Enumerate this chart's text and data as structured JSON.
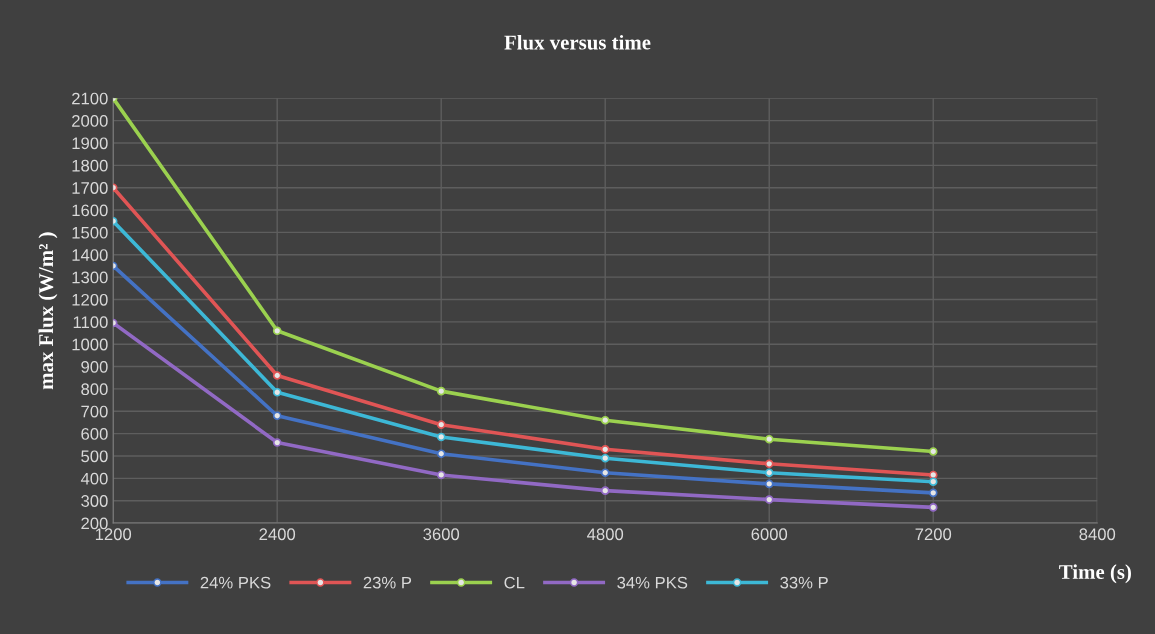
{
  "chart_data": {
    "type": "line",
    "title": "Flux versus time",
    "xlabel": "Time (s)",
    "ylabel": "max Flux (W/m² )",
    "x": [
      1200,
      2400,
      3600,
      4800,
      6000,
      7200
    ],
    "series": [
      {
        "name": "24% PKS",
        "color": "#4472c4",
        "values": [
          1350,
          680,
          510,
          425,
          375,
          335
        ]
      },
      {
        "name": "23% P",
        "color": "#e05555",
        "values": [
          1700,
          860,
          640,
          530,
          465,
          415
        ]
      },
      {
        "name": "CL",
        "color": "#9bd14f",
        "values": [
          2100,
          1060,
          790,
          660,
          575,
          520
        ]
      },
      {
        "name": "34% PKS",
        "color": "#9169c4",
        "values": [
          1095,
          560,
          415,
          345,
          305,
          270
        ]
      },
      {
        "name": "33% P",
        "color": "#3db8d6",
        "values": [
          1550,
          785,
          585,
          490,
          425,
          385
        ]
      }
    ],
    "xlim": [
      1200,
      8400
    ],
    "xticks": [
      1200,
      2400,
      3600,
      4800,
      6000,
      7200,
      8400
    ],
    "ylim": [
      200,
      2100
    ],
    "yticks": [
      200,
      300,
      400,
      500,
      600,
      700,
      800,
      900,
      1000,
      1100,
      1200,
      1300,
      1400,
      1500,
      1600,
      1700,
      1800,
      1900,
      2000,
      2100
    ],
    "grid": true,
    "legend": "bottom",
    "marker": "circle",
    "line_style": "solid"
  }
}
